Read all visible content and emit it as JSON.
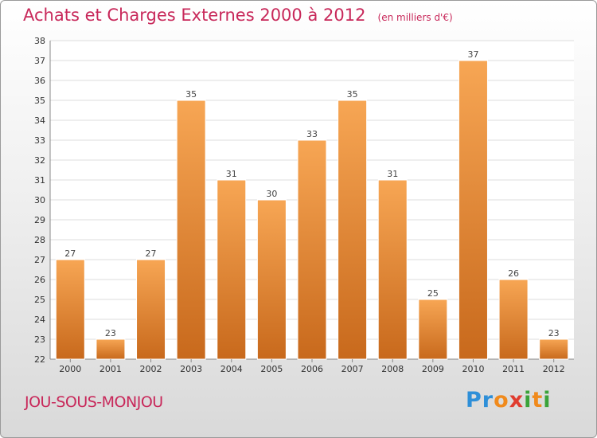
{
  "header": {
    "title": "Achats et Charges Externes 2000 à 2012",
    "unit": "(en milliers d'€)"
  },
  "commune": "JOU-SOUS-MONJOU",
  "logo": {
    "letters": [
      "P",
      "r",
      "o",
      "x",
      "i",
      "t",
      "i"
    ],
    "colors": [
      "#2e8fd8",
      "#2e8fd8",
      "#f08a1c",
      "#e03c2f",
      "#3aa33a",
      "#f08a1c",
      "#3aa33a"
    ]
  },
  "colors": {
    "bar_light": "#f7a654",
    "bar_dark": "#c8691c",
    "title": "#c8285a"
  },
  "chart_data": {
    "type": "bar",
    "categories": [
      "2000",
      "2001",
      "2002",
      "2003",
      "2004",
      "2005",
      "2006",
      "2007",
      "2008",
      "2009",
      "2010",
      "2011",
      "2012"
    ],
    "values": [
      27,
      23,
      27,
      35,
      31,
      30,
      33,
      35,
      31,
      25,
      37,
      26,
      23
    ],
    "ylim": [
      22,
      38
    ],
    "yticks": [
      22,
      23,
      24,
      25,
      26,
      27,
      28,
      29,
      30,
      31,
      32,
      33,
      34,
      35,
      36,
      37,
      38
    ],
    "grid": true
  }
}
